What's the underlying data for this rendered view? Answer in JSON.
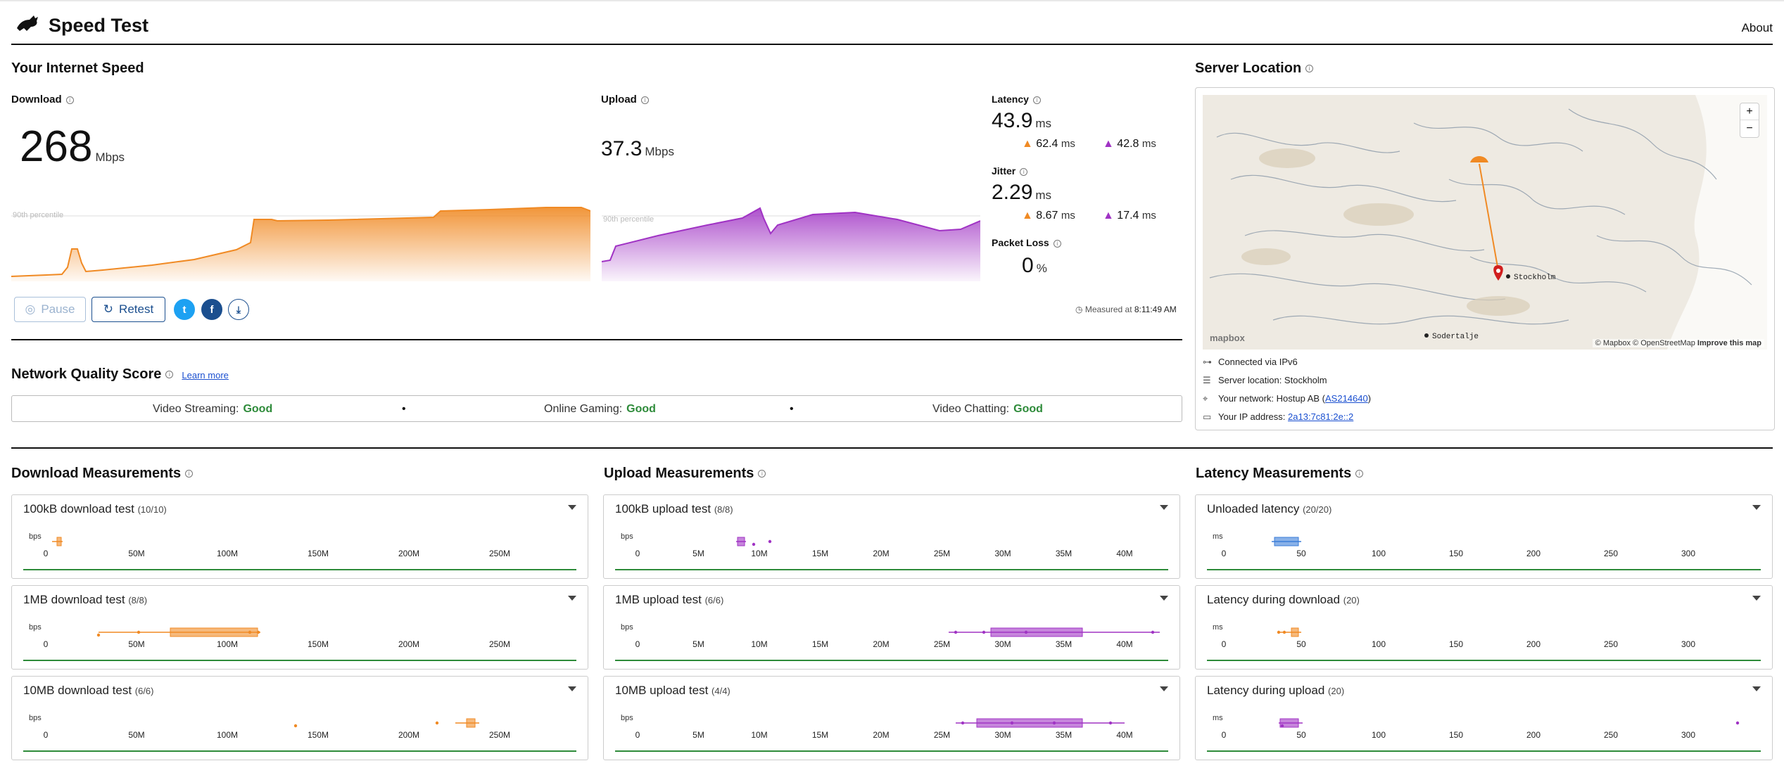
{
  "header": {
    "title": "Speed Test",
    "about": "About"
  },
  "speed": {
    "title": "Your Internet Speed",
    "download": {
      "label": "Download",
      "value": "268",
      "unit": "Mbps",
      "percentile_label": "90th percentile"
    },
    "upload": {
      "label": "Upload",
      "value": "37.3",
      "unit": "Mbps",
      "percentile_label": "90th percentile"
    },
    "latency": {
      "label": "Latency",
      "value": "43.9",
      "unit": "ms",
      "down": "62.4",
      "up": "42.8",
      "sub_unit": "ms"
    },
    "jitter": {
      "label": "Jitter",
      "value": "2.29",
      "unit": "ms",
      "down": "8.67",
      "up": "17.4",
      "sub_unit": "ms"
    },
    "packet_loss": {
      "label": "Packet Loss",
      "value": "0",
      "unit": "%"
    },
    "buttons": {
      "pause": "Pause",
      "retest": "Retest"
    },
    "measured_prefix": "Measured at",
    "measured_time": "8:11:49 AM"
  },
  "nqs": {
    "title": "Network Quality Score",
    "learn_more": "Learn more",
    "items": [
      {
        "label": "Video Streaming:",
        "value": "Good"
      },
      {
        "label": "Online Gaming:",
        "value": "Good"
      },
      {
        "label": "Video Chatting:",
        "value": "Good"
      }
    ]
  },
  "server": {
    "title": "Server Location",
    "map_labels": {
      "city": "Stockholm",
      "city2": "Sodertalje",
      "attribution_mapbox": "© Mapbox",
      "attribution_osm": "© OpenStreetMap",
      "improve": "Improve this map",
      "brand": "mapbox"
    },
    "zoom_in": "+",
    "zoom_out": "−",
    "connected": "Connected via IPv6",
    "location": "Server location: Stockholm",
    "network_prefix": "Your network: Hostup AB (",
    "network_as": "AS214640",
    "network_suffix": ")",
    "ip_prefix": "Your IP address:",
    "ip": "2a13:7c81:2e::2"
  },
  "measurements": {
    "download": {
      "title": "Download Measurements",
      "unit": "bps",
      "ticks": [
        "0",
        "50M",
        "100M",
        "150M",
        "200M",
        "250M"
      ],
      "tests": [
        {
          "name": "100kB download test",
          "count": "(10/10)"
        },
        {
          "name": "1MB download test",
          "count": "(8/8)"
        },
        {
          "name": "10MB download test",
          "count": "(6/6)"
        }
      ]
    },
    "upload": {
      "title": "Upload Measurements",
      "unit": "bps",
      "ticks": [
        "0",
        "5M",
        "10M",
        "15M",
        "20M",
        "25M",
        "30M",
        "35M",
        "40M"
      ],
      "tests": [
        {
          "name": "100kB upload test",
          "count": "(8/8)"
        },
        {
          "name": "1MB upload test",
          "count": "(6/6)"
        },
        {
          "name": "10MB upload test",
          "count": "(4/4)"
        }
      ]
    },
    "latency": {
      "title": "Latency Measurements",
      "unit": "ms",
      "ticks": [
        "0",
        "50",
        "100",
        "150",
        "200",
        "250",
        "300"
      ],
      "tests": [
        {
          "name": "Unloaded latency",
          "count": "(20/20)"
        },
        {
          "name": "Latency during download",
          "count": "(20)"
        },
        {
          "name": "Latency during upload",
          "count": "(20)"
        }
      ]
    }
  },
  "colors": {
    "download": "#f08a24",
    "upload": "#a033c4",
    "latency": "#3b7dd8",
    "good": "#2e8b3a",
    "link": "#1a4fd0"
  }
}
